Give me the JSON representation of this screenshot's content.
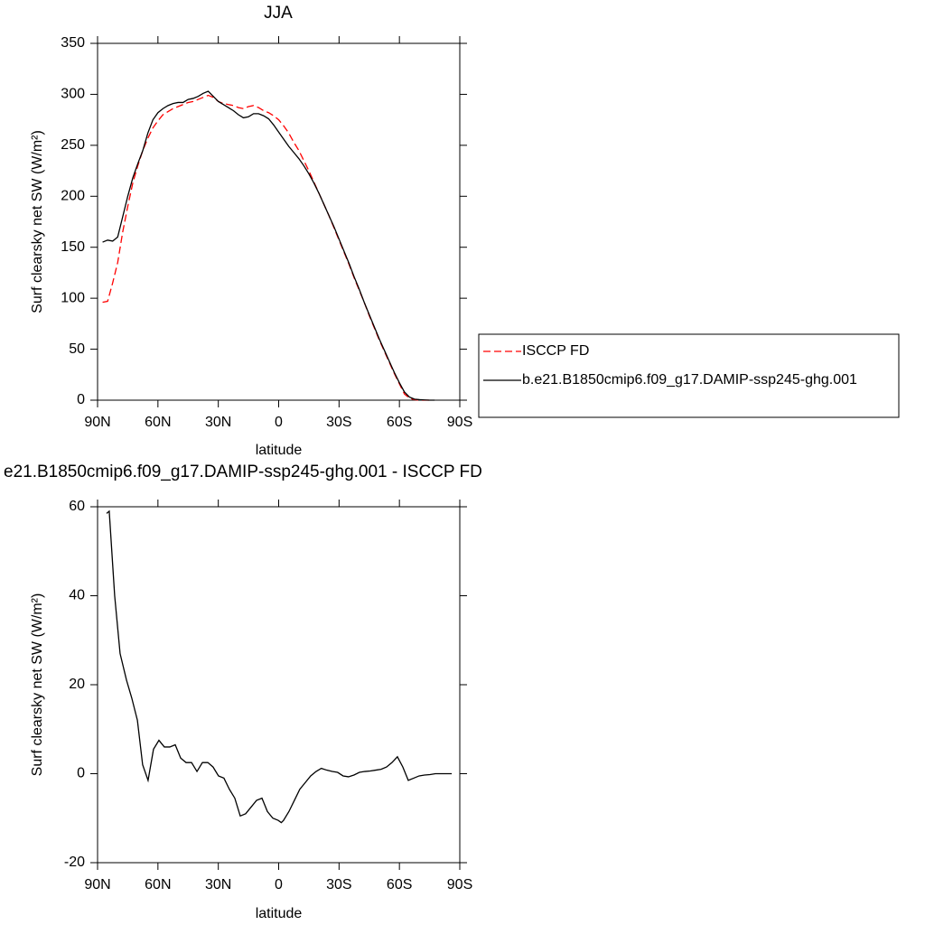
{
  "chart_data": [
    {
      "type": "line",
      "title": "JJA",
      "x_label": "latitude",
      "y_label": "Surf clearsky net SW (W/m²)",
      "xlim": [
        90,
        -90
      ],
      "xticks": [
        {
          "value": 90,
          "label": "90N"
        },
        {
          "value": 60,
          "label": "60N"
        },
        {
          "value": 30,
          "label": "30N"
        },
        0,
        {
          "value": -30,
          "label": "30S"
        },
        {
          "value": -60,
          "label": "60S"
        },
        {
          "value": -90,
          "label": "90S"
        }
      ],
      "ylim": [
        0,
        350
      ],
      "yticks": [
        0,
        50,
        100,
        150,
        200,
        250,
        300,
        350
      ],
      "legend": "right",
      "series": [
        {
          "name": "ISCCP FD",
          "color": "#ff0000",
          "dash": "dashed",
          "x": [
            87.5,
            85,
            82.5,
            80,
            77.5,
            75,
            72.5,
            70,
            67.5,
            65,
            62.5,
            60,
            57.5,
            55,
            52.5,
            50,
            47.5,
            45,
            42.5,
            40,
            37.5,
            35,
            32.5,
            30,
            27.5,
            25,
            22.5,
            20,
            17.5,
            15,
            12.5,
            10,
            7.5,
            5,
            2.5,
            0,
            -2.5,
            -5,
            -7.5,
            -10,
            -12.5,
            -15,
            -17.5,
            -20,
            -22.5,
            -25,
            -27.5,
            -30,
            -32.5,
            -35,
            -37.5,
            -40,
            -42.5,
            -45,
            -47.5,
            -50,
            -52.5,
            -55,
            -57.5,
            -60,
            -62.5,
            -65,
            -67.5,
            -70,
            -72.5,
            -75
          ],
          "values": [
            96,
            97,
            115,
            135,
            165,
            190,
            213,
            230,
            245,
            257,
            267,
            274,
            280,
            283,
            286,
            288,
            290,
            292,
            293,
            295,
            297,
            299,
            297,
            293,
            291,
            290,
            289,
            287,
            286,
            288,
            289,
            287,
            284,
            282,
            279,
            275,
            269,
            262,
            253,
            245,
            235,
            225,
            214,
            203,
            192,
            181,
            169,
            157,
            145,
            133,
            120,
            108,
            96,
            83,
            71,
            59,
            48,
            37,
            26,
            16,
            6,
            2,
            0.5,
            0,
            0,
            0
          ]
        },
        {
          "name": "b.e21.B1850cmip6.f09_g17.DAMIP-ssp245-ghg.001",
          "color": "#000000",
          "dash": "solid",
          "x": [
            87.5,
            85,
            82.5,
            80,
            77.5,
            75,
            72.5,
            70,
            67.5,
            65,
            62.5,
            60,
            57.5,
            55,
            52.5,
            50,
            47.5,
            45,
            42.5,
            40,
            37.5,
            35,
            32.5,
            30,
            27.5,
            25,
            22.5,
            20,
            17.5,
            15,
            12.5,
            10,
            7.5,
            5,
            2.5,
            0,
            -2.5,
            -5,
            -7.5,
            -10,
            -12.5,
            -15,
            -17.5,
            -20,
            -22.5,
            -25,
            -27.5,
            -30,
            -32.5,
            -35,
            -37.5,
            -40,
            -42.5,
            -45,
            -47.5,
            -50,
            -52.5,
            -55,
            -57.5,
            -60,
            -62.5,
            -65,
            -67.5,
            -70,
            -72.5,
            -75,
            -77.5
          ],
          "values": [
            155,
            157,
            156,
            160,
            180,
            200,
            218,
            232,
            245,
            262,
            275,
            282,
            286,
            289,
            291,
            292,
            292,
            295,
            296,
            298,
            301,
            303,
            298,
            293,
            290,
            287,
            284,
            280,
            277,
            278,
            281,
            281,
            279,
            276,
            270,
            263,
            256,
            249,
            243,
            237,
            230,
            222,
            213,
            203,
            192,
            181,
            170,
            158,
            146,
            134,
            121,
            109,
            96,
            84,
            72,
            60,
            49,
            38,
            27,
            17,
            8,
            3,
            1,
            0.5,
            0.2,
            0,
            0
          ]
        }
      ]
    },
    {
      "type": "line",
      "title": "e21.B1850cmip6.f09_g17.DAMIP-ssp245-ghg.001 - ISCCP FD",
      "x_label": "latitude",
      "y_label": "Surf clearsky net SW (W/m²)",
      "xlim": [
        90,
        -90
      ],
      "xticks": [
        {
          "value": 90,
          "label": "90N"
        },
        {
          "value": 60,
          "label": "60N"
        },
        {
          "value": 30,
          "label": "30N"
        },
        0,
        {
          "value": -30,
          "label": "30S"
        },
        {
          "value": -60,
          "label": "60S"
        },
        {
          "value": -90,
          "label": "90S"
        }
      ],
      "ylim": [
        -20,
        60
      ],
      "yticks": [
        -20,
        0,
        20,
        40,
        60
      ],
      "color": "#000000",
      "x": [
        85.5,
        84.2,
        81.5,
        78.8,
        75.6,
        73,
        70.2,
        67.6,
        64.9,
        62.2,
        59.5,
        56.8,
        54.1,
        51.4,
        48.7,
        46,
        43.3,
        40.6,
        37.9,
        35.2,
        32.6,
        29.9,
        27.2,
        24.5,
        21.8,
        19.1,
        16.4,
        13.7,
        11,
        8.3,
        5.6,
        2.9,
        0.2,
        -1.3,
        -2.4,
        -5.1,
        -7.8,
        -10.5,
        -13.2,
        -15.9,
        -18.6,
        -21.2,
        -23.9,
        -26.6,
        -29.3,
        -32,
        -34.7,
        -37.4,
        -40.1,
        -42.8,
        -45.5,
        -48.2,
        -50.9,
        -53.6,
        -56.3,
        -59,
        -61.7,
        -64.4,
        -67.1,
        -69.8,
        -72.5,
        -75.2,
        -77.9,
        -80.6,
        -83.3,
        -86
      ],
      "values": [
        58.5,
        59,
        40,
        27,
        21,
        17,
        12,
        2,
        -1.5,
        5.5,
        7.5,
        6,
        6,
        6.5,
        3.5,
        2.5,
        2.5,
        0.5,
        2.5,
        2.5,
        1.5,
        -0.5,
        -1,
        -3.5,
        -5.5,
        -9.5,
        -9,
        -7.5,
        -6,
        -5.5,
        -8.5,
        -10,
        -10.5,
        -11,
        -10.5,
        -8.5,
        -6,
        -3.5,
        -2,
        -0.5,
        0.5,
        1.2,
        0.8,
        0.5,
        0.3,
        -0.5,
        -0.7,
        -0.3,
        0.3,
        0.5,
        0.6,
        0.8,
        1,
        1.5,
        2.5,
        3.8,
        1.5,
        -1.5,
        -1,
        -0.5,
        -0.3,
        -0.2,
        0,
        0,
        0,
        0
      ]
    }
  ]
}
